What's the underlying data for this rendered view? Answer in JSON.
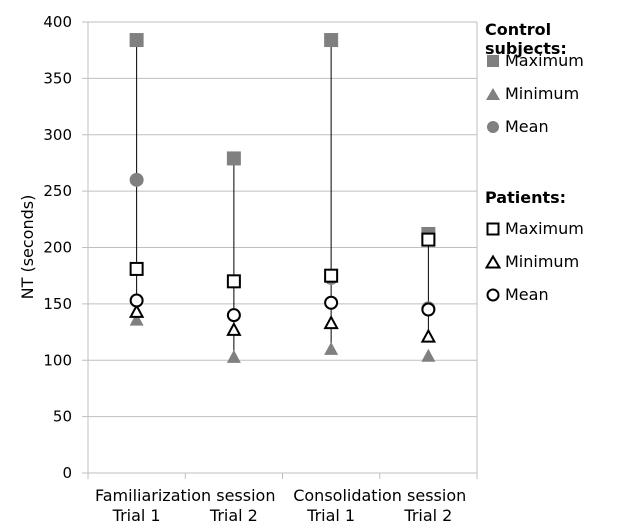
{
  "chart_data": {
    "type": "scatter",
    "ylabel": "NT (seconds)",
    "ylim": [
      0,
      400
    ],
    "yticks": [
      0,
      50,
      100,
      150,
      200,
      250,
      300,
      350,
      400
    ],
    "grid": true,
    "legend_position": "right",
    "categories": [
      "Trial 1",
      "Trial 2",
      "Trial 1",
      "Trial 2"
    ],
    "category_groups": [
      {
        "label": "Familiarization session",
        "span": [
          0,
          1
        ]
      },
      {
        "label": "Consolidation session",
        "span": [
          2,
          3
        ]
      }
    ],
    "series": [
      {
        "name": "Maximum",
        "group": "Control subjects",
        "marker": "square",
        "filled": true,
        "values": [
          384,
          279,
          384,
          212
        ]
      },
      {
        "name": "Minimum",
        "group": "Control subjects",
        "marker": "triangle",
        "filled": true,
        "values": [
          136,
          103,
          110,
          104
        ]
      },
      {
        "name": "Mean",
        "group": "Control subjects",
        "marker": "circle",
        "filled": true,
        "values": [
          260,
          170,
          173,
          146
        ]
      },
      {
        "name": "Maximum",
        "group": "Patients",
        "marker": "square",
        "filled": false,
        "values": [
          181,
          170,
          175,
          207
        ]
      },
      {
        "name": "Minimum",
        "group": "Patients",
        "marker": "triangle",
        "filled": false,
        "values": [
          143,
          127,
          133,
          121
        ]
      },
      {
        "name": "Mean",
        "group": "Patients",
        "marker": "circle",
        "filled": false,
        "values": [
          153,
          140,
          151,
          145
        ]
      }
    ],
    "range_lines": {
      "from": [
        143,
        103,
        110,
        121
      ],
      "to": [
        384,
        279,
        384,
        212
      ]
    }
  },
  "legend": {
    "control_title": "Control subjects:",
    "patients_title": "Patients:",
    "items": [
      "Maximum",
      "Minimum",
      "Mean"
    ]
  },
  "colors": {
    "control": "#808080",
    "patients": "#000000",
    "grid": "#bfbfbf"
  }
}
